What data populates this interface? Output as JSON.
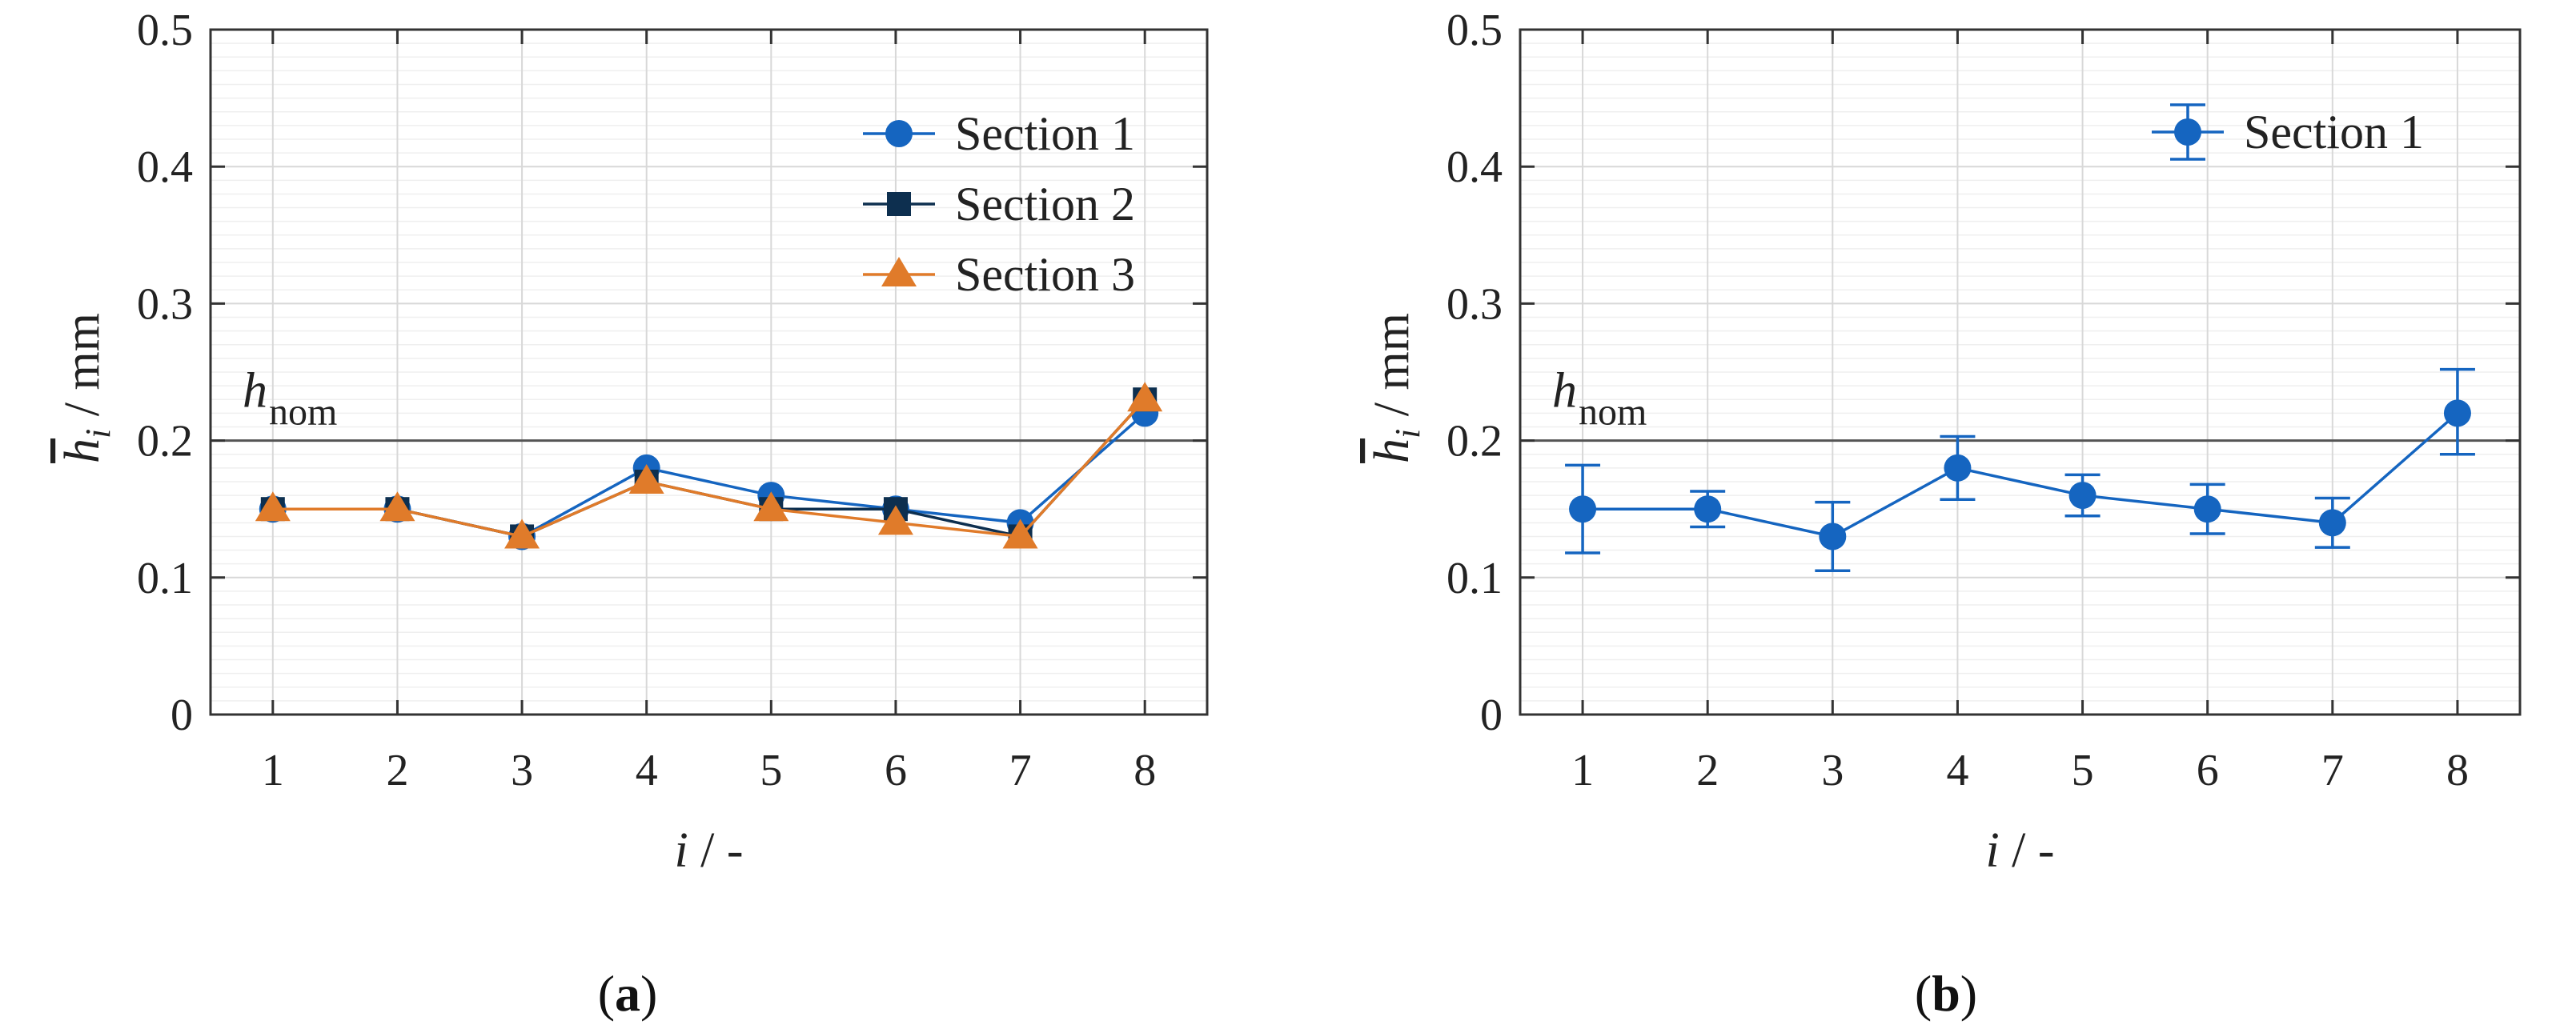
{
  "chart_data": [
    {
      "panel_label_open": "(",
      "panel_label": "a",
      "panel_label_close": ")",
      "type": "line",
      "xlabel_var": "i",
      "xlabel_unit": " / -",
      "ylabel_var": "h",
      "ylabel_sub": "i",
      "ylabel_unit": " / mm",
      "x": [
        1,
        2,
        3,
        4,
        5,
        6,
        7,
        8
      ],
      "xlim": [
        0.5,
        8.5
      ],
      "ylim": [
        0,
        0.5
      ],
      "ytick_labels": [
        "0",
        "0.1",
        "0.2",
        "0.3",
        "0.4",
        "0.5"
      ],
      "xtick_labels": [
        "1",
        "2",
        "3",
        "4",
        "5",
        "6",
        "7",
        "8"
      ],
      "grid": true,
      "legend_position": "top-right",
      "reference_line": {
        "y": 0.2,
        "label_main": "h",
        "label_sub": "nom"
      },
      "series": [
        {
          "name": "Section 1",
          "marker": "circle",
          "color": "#1565C0",
          "values": [
            0.15,
            0.15,
            0.13,
            0.18,
            0.16,
            0.15,
            0.14,
            0.22
          ]
        },
        {
          "name": "Section 2",
          "marker": "square",
          "color": "#0D2F4F",
          "values": [
            0.15,
            0.15,
            0.13,
            0.17,
            0.15,
            0.15,
            0.13,
            0.23
          ]
        },
        {
          "name": "Section 3",
          "marker": "triangle",
          "color": "#E07B2A",
          "values": [
            0.15,
            0.15,
            0.13,
            0.17,
            0.15,
            0.14,
            0.13,
            0.23
          ]
        }
      ]
    },
    {
      "panel_label_open": "(",
      "panel_label": "b",
      "panel_label_close": ")",
      "type": "line",
      "xlabel_var": "i",
      "xlabel_unit": " / -",
      "ylabel_var": "h",
      "ylabel_sub": "i",
      "ylabel_unit": " / mm",
      "x": [
        1,
        2,
        3,
        4,
        5,
        6,
        7,
        8
      ],
      "xlim": [
        0.5,
        8.5
      ],
      "ylim": [
        0,
        0.5
      ],
      "ytick_labels": [
        "0",
        "0.1",
        "0.2",
        "0.3",
        "0.4",
        "0.5"
      ],
      "xtick_labels": [
        "1",
        "2",
        "3",
        "4",
        "5",
        "6",
        "7",
        "8"
      ],
      "grid": true,
      "legend_position": "top-right",
      "reference_line": {
        "y": 0.2,
        "label_main": "h",
        "label_sub": "nom"
      },
      "series": [
        {
          "name": "Section 1",
          "marker": "circle",
          "color": "#1565C0",
          "values": [
            0.15,
            0.15,
            0.13,
            0.18,
            0.16,
            0.15,
            0.14,
            0.22
          ],
          "err_low": [
            0.118,
            0.137,
            0.105,
            0.157,
            0.145,
            0.132,
            0.122,
            0.19
          ],
          "err_high": [
            0.182,
            0.163,
            0.155,
            0.203,
            0.175,
            0.168,
            0.158,
            0.252
          ]
        }
      ]
    }
  ]
}
